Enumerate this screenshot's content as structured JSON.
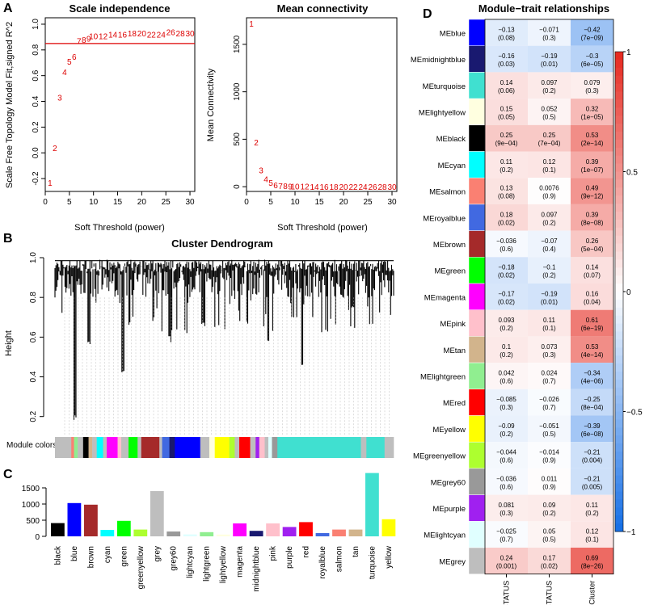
{
  "panels": {
    "a": "A",
    "b": "B",
    "c": "C",
    "d": "D"
  },
  "colors": {
    "threshold_red": "#dd0000",
    "point_red": "#dd0000"
  },
  "chart_data": [
    {
      "id": "scale_independence",
      "type": "scatter",
      "title": "Scale independence",
      "xlabel": "Soft Threshold (power)",
      "ylabel": "Scale Free Topology Model Fit,signed R^2",
      "xlim": [
        0,
        31
      ],
      "ylim": [
        -0.3,
        1.05
      ],
      "xticks": [
        0,
        5,
        10,
        15,
        20,
        25,
        30
      ],
      "yticks": [
        -0.2,
        0.0,
        0.2,
        0.4,
        0.6,
        0.8,
        1.0
      ],
      "ytick_labels": [
        "-0.2",
        "0.0",
        "0.2",
        "0.4",
        "0.6",
        "0.8",
        "1.0"
      ],
      "threshold": 0.85,
      "points": [
        {
          "label": "1",
          "x": 1,
          "y": -0.23
        },
        {
          "label": "2",
          "x": 2,
          "y": 0.04
        },
        {
          "label": "3",
          "x": 3,
          "y": 0.43
        },
        {
          "label": "4",
          "x": 4,
          "y": 0.63
        },
        {
          "label": "5",
          "x": 5,
          "y": 0.71
        },
        {
          "label": "6",
          "x": 6,
          "y": 0.75
        },
        {
          "label": "7",
          "x": 7,
          "y": 0.87
        },
        {
          "label": "8",
          "x": 8,
          "y": 0.88
        },
        {
          "label": "9",
          "x": 9,
          "y": 0.89
        },
        {
          "label": "10",
          "x": 10,
          "y": 0.91
        },
        {
          "label": "12",
          "x": 12,
          "y": 0.91
        },
        {
          "label": "14",
          "x": 14,
          "y": 0.92
        },
        {
          "label": "16",
          "x": 16,
          "y": 0.92
        },
        {
          "label": "18",
          "x": 18,
          "y": 0.93
        },
        {
          "label": "20",
          "x": 20,
          "y": 0.93
        },
        {
          "label": "22",
          "x": 22,
          "y": 0.92
        },
        {
          "label": "24",
          "x": 24,
          "y": 0.92
        },
        {
          "label": "26",
          "x": 26,
          "y": 0.94
        },
        {
          "label": "28",
          "x": 28,
          "y": 0.93
        },
        {
          "label": "30",
          "x": 30,
          "y": 0.93
        }
      ]
    },
    {
      "id": "mean_connectivity",
      "type": "scatter",
      "title": "Mean connectivity",
      "xlabel": "Soft Threshold (power)",
      "ylabel": "Mean Connectivity",
      "xlim": [
        0,
        31
      ],
      "ylim": [
        -50,
        1780
      ],
      "xticks": [
        0,
        5,
        10,
        15,
        20,
        25,
        30
      ],
      "yticks": [
        0,
        500,
        1000,
        1500
      ],
      "ytick_labels": [
        "0",
        "500",
        "1000",
        "1500"
      ],
      "points": [
        {
          "label": "1",
          "x": 1,
          "y": 1720
        },
        {
          "label": "2",
          "x": 2,
          "y": 470
        },
        {
          "label": "3",
          "x": 3,
          "y": 175
        },
        {
          "label": "4",
          "x": 4,
          "y": 80
        },
        {
          "label": "5",
          "x": 5,
          "y": 45
        },
        {
          "label": "6",
          "x": 6,
          "y": 20
        },
        {
          "label": "7",
          "x": 7,
          "y": 10
        },
        {
          "label": "8",
          "x": 8,
          "y": 8
        },
        {
          "label": "9",
          "x": 9,
          "y": 6
        },
        {
          "label": "10",
          "x": 10,
          "y": 5
        },
        {
          "label": "12",
          "x": 12,
          "y": 4
        },
        {
          "label": "14",
          "x": 14,
          "y": 3
        },
        {
          "label": "16",
          "x": 16,
          "y": 2
        },
        {
          "label": "18",
          "x": 18,
          "y": 2
        },
        {
          "label": "20",
          "x": 20,
          "y": 1
        },
        {
          "label": "22",
          "x": 22,
          "y": 1
        },
        {
          "label": "24",
          "x": 24,
          "y": 1
        },
        {
          "label": "26",
          "x": 26,
          "y": 1
        },
        {
          "label": "28",
          "x": 28,
          "y": 1
        },
        {
          "label": "30",
          "x": 30,
          "y": 1
        }
      ]
    },
    {
      "id": "cluster_dendrogram",
      "type": "dendrogram",
      "title": "Cluster Dendrogram",
      "ylabel": "Height",
      "ylim": [
        0.15,
        1.0
      ],
      "yticks": [
        0.2,
        0.4,
        0.6,
        0.8,
        1.0
      ],
      "ytick_labels": [
        "0.2",
        "0.4",
        "0.6",
        "0.8",
        "1.0"
      ],
      "module_colors_label": "Module colors"
    },
    {
      "id": "module_sizes",
      "type": "bar",
      "ylim": [
        0,
        2000
      ],
      "yticks": [
        0,
        500,
        1000,
        1500
      ],
      "ytick_labels": [
        "0",
        "500",
        "1000",
        "1500"
      ],
      "categories": [
        "black",
        "blue",
        "brown",
        "cyan",
        "green",
        "greenyellow",
        "grey",
        "grey60",
        "lightcyan",
        "lightgreen",
        "lightyellow",
        "magenta",
        "midnightblue",
        "pink",
        "purple",
        "red",
        "royalblue",
        "salmon",
        "tan",
        "turquoise",
        "yellow"
      ],
      "values": [
        410,
        1030,
        980,
        200,
        480,
        210,
        1400,
        150,
        60,
        130,
        55,
        400,
        170,
        400,
        290,
        440,
        100,
        210,
        210,
        1960,
        530
      ],
      "bar_colors": [
        "#000000",
        "#0000ff",
        "#a52a2a",
        "#00ffff",
        "#00ff00",
        "#adff2f",
        "#bebebe",
        "#999999",
        "#e0ffff",
        "#90ee90",
        "#ffffe0",
        "#ff00ff",
        "#191970",
        "#ffc0cb",
        "#a020f0",
        "#ff0000",
        "#4169e1",
        "#fa8072",
        "#d2b48c",
        "#40e0d0",
        "#ffff00"
      ]
    },
    {
      "id": "module_trait",
      "type": "heatmap",
      "title": "Module−trait relationships",
      "columns": [
        "OS_STATUS",
        "PFS_STATUS",
        "Cluster"
      ],
      "colorbar_ticks": [
        1,
        0.5,
        0,
        -0.5,
        -1
      ],
      "colorbar_labels": [
        "1",
        "0.5",
        "0",
        "−0.5",
        "−1"
      ],
      "rows": [
        {
          "name": "MEblue",
          "color": "#0000ff",
          "cells": [
            {
              "v": "−0.13",
              "p": "(0.08)"
            },
            {
              "v": "−0.071",
              "p": "(0.3)"
            },
            {
              "v": "−0.42",
              "p": "(7e−09)"
            }
          ],
          "values": [
            -0.13,
            -0.071,
            -0.42
          ]
        },
        {
          "name": "MEmidnightblue",
          "color": "#191970",
          "cells": [
            {
              "v": "−0.16",
              "p": "(0.03)"
            },
            {
              "v": "−0.19",
              "p": "(0.01)"
            },
            {
              "v": "−0.3",
              "p": "(6e−05)"
            }
          ],
          "values": [
            -0.16,
            -0.19,
            -0.3
          ]
        },
        {
          "name": "MEturquoise",
          "color": "#40e0d0",
          "cells": [
            {
              "v": "0.14",
              "p": "(0.06)"
            },
            {
              "v": "0.097",
              "p": "(0.2)"
            },
            {
              "v": "0.079",
              "p": "(0.3)"
            }
          ],
          "values": [
            0.14,
            0.097,
            0.079
          ]
        },
        {
          "name": "MElightyellow",
          "color": "#ffffe0",
          "cells": [
            {
              "v": "0.15",
              "p": "(0.05)"
            },
            {
              "v": "0.052",
              "p": "(0.5)"
            },
            {
              "v": "0.32",
              "p": "(1e−05)"
            }
          ],
          "values": [
            0.15,
            0.052,
            0.32
          ]
        },
        {
          "name": "MEblack",
          "color": "#000000",
          "cells": [
            {
              "v": "0.25",
              "p": "(9e−04)"
            },
            {
              "v": "0.25",
              "p": "(7e−04)"
            },
            {
              "v": "0.53",
              "p": "(2e−14)"
            }
          ],
          "values": [
            0.25,
            0.25,
            0.53
          ]
        },
        {
          "name": "MEcyan",
          "color": "#00ffff",
          "cells": [
            {
              "v": "0.11",
              "p": "(0.2)"
            },
            {
              "v": "0.12",
              "p": "(0.1)"
            },
            {
              "v": "0.39",
              "p": "(1e−07)"
            }
          ],
          "values": [
            0.11,
            0.12,
            0.39
          ]
        },
        {
          "name": "MEsalmon",
          "color": "#fa8072",
          "cells": [
            {
              "v": "0.13",
              "p": "(0.08)"
            },
            {
              "v": "0.0076",
              "p": "(0.9)"
            },
            {
              "v": "0.49",
              "p": "(9e−12)"
            }
          ],
          "values": [
            0.13,
            0.0076,
            0.49
          ]
        },
        {
          "name": "MEroyalblue",
          "color": "#4169e1",
          "cells": [
            {
              "v": "0.18",
              "p": "(0.02)"
            },
            {
              "v": "0.097",
              "p": "(0.2)"
            },
            {
              "v": "0.39",
              "p": "(8e−08)"
            }
          ],
          "values": [
            0.18,
            0.097,
            0.39
          ]
        },
        {
          "name": "MEbrown",
          "color": "#a52a2a",
          "cells": [
            {
              "v": "−0.036",
              "p": "(0.6)"
            },
            {
              "v": "−0.07",
              "p": "(0.4)"
            },
            {
              "v": "0.26",
              "p": "(5e−04)"
            }
          ],
          "values": [
            -0.036,
            -0.07,
            0.26
          ]
        },
        {
          "name": "MEgreen",
          "color": "#00ff00",
          "cells": [
            {
              "v": "−0.18",
              "p": "(0.02)"
            },
            {
              "v": "−0.1",
              "p": "(0.2)"
            },
            {
              "v": "0.14",
              "p": "(0.07)"
            }
          ],
          "values": [
            -0.18,
            -0.1,
            0.14
          ]
        },
        {
          "name": "MEmagenta",
          "color": "#ff00ff",
          "cells": [
            {
              "v": "−0.17",
              "p": "(0.02)"
            },
            {
              "v": "−0.19",
              "p": "(0.01)"
            },
            {
              "v": "0.16",
              "p": "(0.04)"
            }
          ],
          "values": [
            -0.17,
            -0.19,
            0.16
          ]
        },
        {
          "name": "MEpink",
          "color": "#ffc0cb",
          "cells": [
            {
              "v": "0.093",
              "p": "(0.2)"
            },
            {
              "v": "0.11",
              "p": "(0.1)"
            },
            {
              "v": "0.61",
              "p": "(6e−19)"
            }
          ],
          "values": [
            0.093,
            0.11,
            0.61
          ]
        },
        {
          "name": "MEtan",
          "color": "#d2b48c",
          "cells": [
            {
              "v": "0.1",
              "p": "(0.2)"
            },
            {
              "v": "0.073",
              "p": "(0.3)"
            },
            {
              "v": "0.53",
              "p": "(4e−14)"
            }
          ],
          "values": [
            0.1,
            0.073,
            0.53
          ]
        },
        {
          "name": "MElightgreen",
          "color": "#90ee90",
          "cells": [
            {
              "v": "0.042",
              "p": "(0.6)"
            },
            {
              "v": "0.024",
              "p": "(0.7)"
            },
            {
              "v": "−0.34",
              "p": "(4e−06)"
            }
          ],
          "values": [
            0.042,
            0.024,
            -0.34
          ]
        },
        {
          "name": "MEred",
          "color": "#ff0000",
          "cells": [
            {
              "v": "−0.085",
              "p": "(0.3)"
            },
            {
              "v": "−0.026",
              "p": "(0.7)"
            },
            {
              "v": "−0.25",
              "p": "(8e−04)"
            }
          ],
          "values": [
            -0.085,
            -0.026,
            -0.25
          ]
        },
        {
          "name": "MEyellow",
          "color": "#ffff00",
          "cells": [
            {
              "v": "−0.09",
              "p": "(0.2)"
            },
            {
              "v": "−0.051",
              "p": "(0.5)"
            },
            {
              "v": "−0.39",
              "p": "(6e−08)"
            }
          ],
          "values": [
            -0.09,
            -0.051,
            -0.39
          ]
        },
        {
          "name": "MEgreenyellow",
          "color": "#adff2f",
          "cells": [
            {
              "v": "−0.044",
              "p": "(0.6)"
            },
            {
              "v": "−0.014",
              "p": "(0.9)"
            },
            {
              "v": "−0.21",
              "p": "(0.004)"
            }
          ],
          "values": [
            -0.044,
            -0.014,
            -0.21
          ]
        },
        {
          "name": "MEgrey60",
          "color": "#999999",
          "cells": [
            {
              "v": "−0.036",
              "p": "(0.6)"
            },
            {
              "v": "0.011",
              "p": "(0.9)"
            },
            {
              "v": "−0.21",
              "p": "(0.005)"
            }
          ],
          "values": [
            -0.036,
            0.011,
            -0.21
          ]
        },
        {
          "name": "MEpurple",
          "color": "#a020f0",
          "cells": [
            {
              "v": "0.081",
              "p": "(0.3)"
            },
            {
              "v": "0.09",
              "p": "(0.2)"
            },
            {
              "v": "0.11",
              "p": "(0.2)"
            }
          ],
          "values": [
            0.081,
            0.09,
            0.11
          ]
        },
        {
          "name": "MElightcyan",
          "color": "#e0ffff",
          "cells": [
            {
              "v": "−0.025",
              "p": "(0.7)"
            },
            {
              "v": "0.05",
              "p": "(0.5)"
            },
            {
              "v": "0.12",
              "p": "(0.1)"
            }
          ],
          "values": [
            -0.025,
            0.05,
            0.12
          ]
        },
        {
          "name": "MEgrey",
          "color": "#bebebe",
          "cells": [
            {
              "v": "0.24",
              "p": "(0.001)"
            },
            {
              "v": "0.17",
              "p": "(0.02)"
            },
            {
              "v": "0.69",
              "p": "(8e−26)"
            }
          ],
          "values": [
            0.24,
            0.17,
            0.69
          ]
        }
      ]
    }
  ]
}
